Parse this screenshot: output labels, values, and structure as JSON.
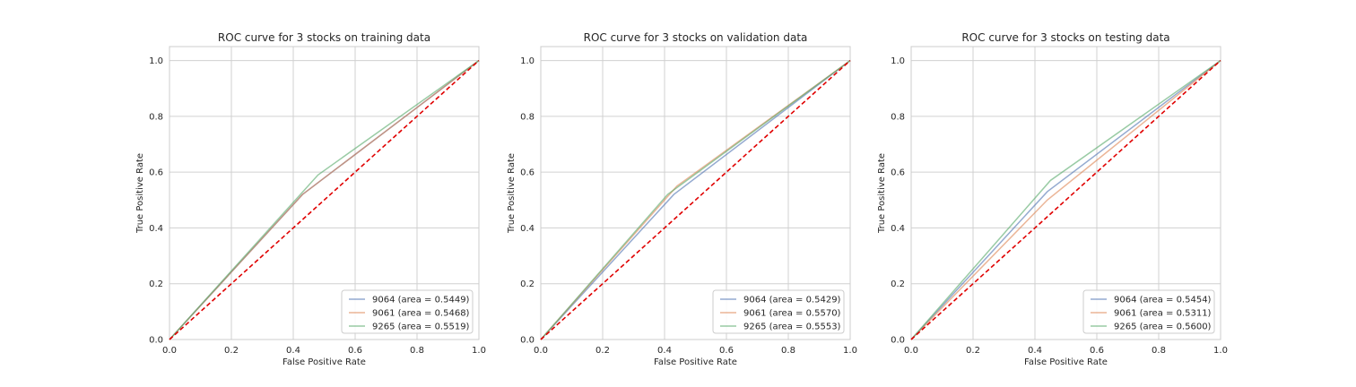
{
  "chart_data": [
    {
      "type": "line",
      "title": "ROC curve for 3 stocks on training data",
      "xlabel": "False Positive Rate",
      "ylabel": "True Positive Rate",
      "xlim": [
        0,
        1
      ],
      "ylim": [
        0,
        1.05
      ],
      "xticks": [
        "0.0",
        "0.2",
        "0.4",
        "0.6",
        "0.8",
        "1.0"
      ],
      "yticks": [
        "0.0",
        "0.2",
        "0.4",
        "0.6",
        "0.8",
        "1.0"
      ],
      "grid": true,
      "legend_position": "lower-right",
      "series": [
        {
          "name": "9064 (area = 0.5449)",
          "color": "#4c72b0",
          "x": [
            0,
            0.43,
            1
          ],
          "y": [
            0,
            0.52,
            1
          ]
        },
        {
          "name": "9061 (area = 0.5468)",
          "color": "#dd8452",
          "x": [
            0,
            0.43,
            1
          ],
          "y": [
            0,
            0.52,
            1
          ]
        },
        {
          "name": "9265 (area = 0.5519)",
          "color": "#55a868",
          "x": [
            0,
            0.48,
            1
          ],
          "y": [
            0,
            0.59,
            1
          ]
        }
      ],
      "diagonal": {
        "color": "#e00000",
        "x": [
          0,
          1
        ],
        "y": [
          0,
          1
        ]
      }
    },
    {
      "type": "line",
      "title": "ROC curve for 3 stocks on validation data",
      "xlabel": "False Positive Rate",
      "ylabel": "True Positive Rate",
      "xlim": [
        0,
        1
      ],
      "ylim": [
        0,
        1.05
      ],
      "xticks": [
        "0.0",
        "0.2",
        "0.4",
        "0.6",
        "0.8",
        "1.0"
      ],
      "yticks": [
        "0.0",
        "0.2",
        "0.4",
        "0.6",
        "0.8",
        "1.0"
      ],
      "grid": true,
      "legend_position": "lower-right",
      "series": [
        {
          "name": "9064 (area = 0.5429)",
          "color": "#4c72b0",
          "x": [
            0,
            0.43,
            1
          ],
          "y": [
            0,
            0.52,
            1
          ]
        },
        {
          "name": "9061 (area = 0.5570)",
          "color": "#dd8452",
          "x": [
            0,
            0.44,
            1
          ],
          "y": [
            0,
            0.55,
            1
          ]
        },
        {
          "name": "9265 (area = 0.5553)",
          "color": "#55a868",
          "x": [
            0,
            0.41,
            1
          ],
          "y": [
            0,
            0.52,
            1
          ]
        }
      ],
      "diagonal": {
        "color": "#e00000",
        "x": [
          0,
          1
        ],
        "y": [
          0,
          1
        ]
      }
    },
    {
      "type": "line",
      "title": "ROC curve for 3 stocks on testing data",
      "xlabel": "False Positive Rate",
      "ylabel": "True Positive Rate",
      "xlim": [
        0,
        1
      ],
      "ylim": [
        0,
        1.05
      ],
      "xticks": [
        "0.0",
        "0.2",
        "0.4",
        "0.6",
        "0.8",
        "1.0"
      ],
      "yticks": [
        "0.0",
        "0.2",
        "0.4",
        "0.6",
        "0.8",
        "1.0"
      ],
      "grid": true,
      "legend_position": "lower-right",
      "series": [
        {
          "name": "9064 (area = 0.5454)",
          "color": "#4c72b0",
          "x": [
            0,
            0.44,
            1
          ],
          "y": [
            0,
            0.53,
            1
          ]
        },
        {
          "name": "9061 (area = 0.5311)",
          "color": "#dd8452",
          "x": [
            0,
            0.44,
            1
          ],
          "y": [
            0,
            0.5,
            1
          ]
        },
        {
          "name": "9265 (area = 0.5600)",
          "color": "#55a868",
          "x": [
            0,
            0.45,
            1
          ],
          "y": [
            0,
            0.57,
            1
          ]
        }
      ],
      "diagonal": {
        "color": "#e00000",
        "x": [
          0,
          1
        ],
        "y": [
          0,
          1
        ]
      }
    }
  ]
}
